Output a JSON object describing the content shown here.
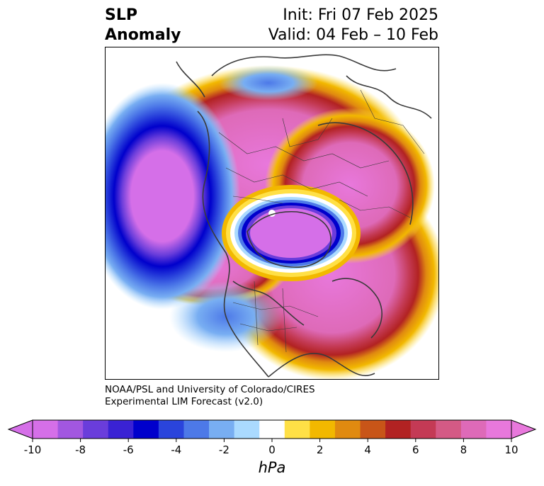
{
  "title": {
    "line1": "SLP",
    "line2": "Anomaly"
  },
  "subtitle": {
    "init": "Init: Fri 07 Feb 2025",
    "valid": "Valid: 04 Feb – 10 Feb"
  },
  "credit": {
    "line1": "NOAA/PSL and University of Colorado/CIRES",
    "line2": "Experimental LIM Forecast (v2.0)"
  },
  "colorbar": {
    "unit": "hPa",
    "levels": [
      -10,
      -9,
      -8,
      -7,
      -6,
      -5,
      -4,
      -3,
      -2,
      -1,
      1,
      2,
      3,
      4,
      5,
      6,
      7,
      8,
      9,
      10
    ],
    "colors": [
      "#d56fe8",
      "#a257e0",
      "#6a3ddb",
      "#3a22d4",
      "#0000cc",
      "#2a44dc",
      "#4d79e8",
      "#78aef2",
      "#aadaff",
      "#ffffff",
      "#ffe046",
      "#f2b800",
      "#e08a10",
      "#c85518",
      "#b22222",
      "#c43a55",
      "#d45a85",
      "#de6ab8",
      "#e878dc"
    ],
    "under_color": "#d56fe8",
    "over_color": "#e878dc",
    "tick_labels": [
      "-10",
      "-8",
      "-6",
      "-4",
      "-2",
      "0",
      "2",
      "4",
      "6",
      "8",
      "10"
    ]
  }
}
